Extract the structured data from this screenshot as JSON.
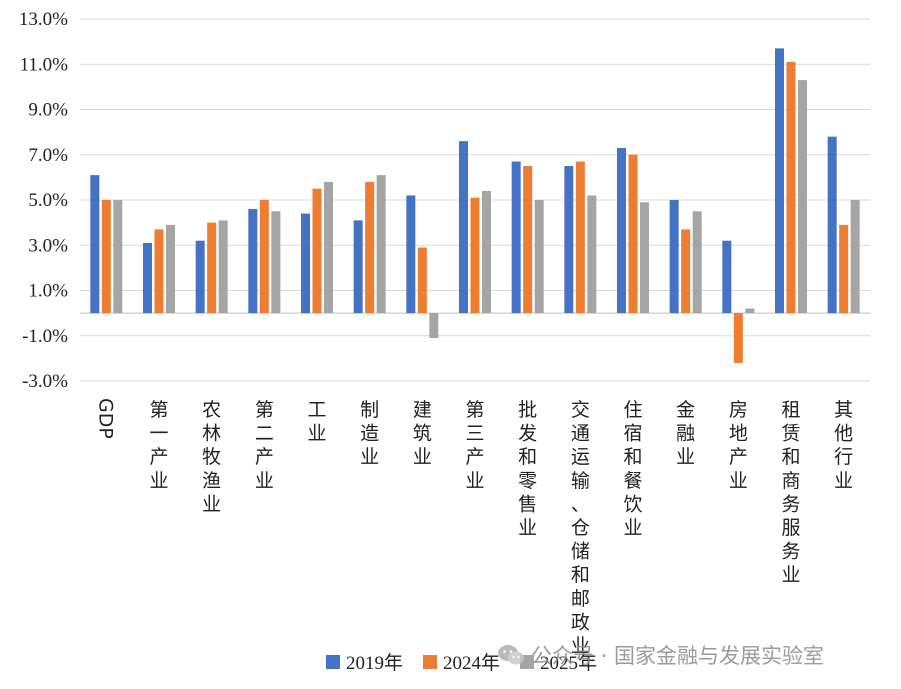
{
  "chart_data": {
    "type": "bar",
    "title": "",
    "xlabel": "",
    "ylabel": "",
    "ylim": [
      -3.0,
      13.0
    ],
    "yticks": [
      "13.0%",
      "11.0%",
      "9.0%",
      "7.0%",
      "5.0%",
      "3.0%",
      "1.0%",
      "-1.0%",
      "-3.0%"
    ],
    "ytick_values": [
      13,
      11,
      9,
      7,
      5,
      3,
      1,
      -1,
      -3
    ],
    "grid": true,
    "legend_position": "bottom",
    "categories": [
      "GDP",
      "第一产业",
      "农林牧渔业",
      "第二产业",
      "工业",
      "制造业",
      "建筑业",
      "第三产业",
      "批发和零售业",
      "交通运输、仓储和邮政业",
      "住宿和餐饮业",
      "金融业",
      "房地产业",
      "租赁和商务服务业",
      "其他行业"
    ],
    "series": [
      {
        "name": "2019年",
        "color": "#4472C4",
        "values": [
          6.1,
          3.1,
          3.2,
          4.6,
          4.4,
          4.1,
          5.2,
          7.6,
          6.7,
          6.5,
          7.3,
          5.0,
          3.2,
          11.7,
          7.8
        ]
      },
      {
        "name": "2024年",
        "color": "#ED7D31",
        "values": [
          5.0,
          3.7,
          4.0,
          5.0,
          5.5,
          5.8,
          2.9,
          5.1,
          6.5,
          6.7,
          7.0,
          3.7,
          -2.2,
          11.1,
          3.9
        ]
      },
      {
        "name": "2025年",
        "color": "#A5A5A5",
        "values": [
          5.0,
          3.9,
          4.1,
          4.5,
          5.8,
          6.1,
          -1.1,
          5.4,
          5.0,
          5.2,
          4.9,
          4.5,
          0.2,
          10.3,
          5.0
        ]
      }
    ]
  },
  "watermark": {
    "text": "公众号 · 国家金融与发展实验室",
    "icon": "wechat-icon"
  }
}
